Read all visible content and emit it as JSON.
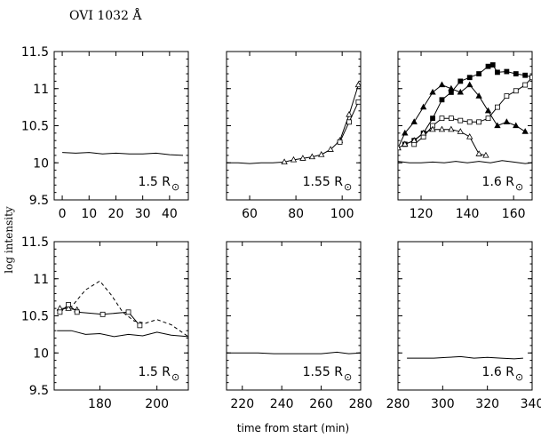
{
  "figure": {
    "title": "OVI 1032 Å",
    "ylabel": "log intensity",
    "xlabel": "time from start (min)"
  },
  "chart_data": [
    {
      "type": "line",
      "radius_label": "1.5 R",
      "radius_symbol": "⊙",
      "xlim": [
        -3,
        47
      ],
      "ylim": [
        9.5,
        11.5
      ],
      "xticks": [
        0,
        10,
        20,
        30,
        40
      ],
      "yticks": [
        9.5,
        10,
        10.5,
        11,
        11.5
      ],
      "series": [
        {
          "style": "solid",
          "marker": "none",
          "x": [
            0,
            5,
            10,
            15,
            20,
            25,
            30,
            35,
            40,
            45
          ],
          "y": [
            10.14,
            10.13,
            10.14,
            10.12,
            10.13,
            10.12,
            10.12,
            10.13,
            10.11,
            10.1
          ]
        }
      ]
    },
    {
      "type": "line",
      "radius_label": "1.55 R",
      "radius_symbol": "⊙",
      "xlim": [
        50,
        108
      ],
      "ylim": [
        9.5,
        11.5
      ],
      "xticks": [
        60,
        80,
        100
      ],
      "yticks": [
        9.5,
        10,
        10.5,
        11,
        11.5
      ],
      "series": [
        {
          "style": "solid",
          "marker": "none",
          "x": [
            50,
            55,
            60,
            65,
            70,
            75
          ],
          "y": [
            10.0,
            10.0,
            9.99,
            10.0,
            10.0,
            10.01
          ]
        },
        {
          "style": "solid",
          "marker": "triangle",
          "x": [
            75,
            79,
            83,
            87,
            91,
            95,
            99,
            103,
            107
          ],
          "y": [
            10.01,
            10.04,
            10.06,
            10.08,
            10.11,
            10.18,
            10.3,
            10.65,
            11.05
          ]
        },
        {
          "style": "solid",
          "marker": "square",
          "x": [
            99,
            103,
            107
          ],
          "y": [
            10.28,
            10.55,
            10.82
          ]
        }
      ]
    },
    {
      "type": "line",
      "radius_label": "1.6 R",
      "radius_symbol": "⊙",
      "xlim": [
        110,
        168
      ],
      "ylim": [
        9.5,
        11.5
      ],
      "xticks": [
        120,
        140,
        160
      ],
      "yticks": [
        9.5,
        10,
        10.5,
        11,
        11.5
      ],
      "series": [
        {
          "style": "solid",
          "marker": "none",
          "x": [
            110,
            115,
            120,
            125,
            130,
            135,
            140,
            145,
            150,
            155,
            160,
            165,
            168
          ],
          "y": [
            10.02,
            10.0,
            10.0,
            10.01,
            10.0,
            10.02,
            10.0,
            10.02,
            10.0,
            10.03,
            10.01,
            9.99,
            10.0
          ]
        },
        {
          "style": "solid",
          "marker": "filled-triangle",
          "x": [
            110,
            113,
            117,
            121,
            125,
            129,
            133,
            137,
            141,
            145,
            149,
            153,
            157,
            161,
            165
          ],
          "y": [
            10.2,
            10.4,
            10.55,
            10.75,
            10.95,
            11.05,
            11.0,
            10.95,
            11.05,
            10.9,
            10.7,
            10.5,
            10.55,
            10.5,
            10.42
          ]
        },
        {
          "style": "solid",
          "marker": "filled-square",
          "x": [
            113,
            117,
            121,
            125,
            129,
            133,
            137,
            141,
            145,
            149,
            151,
            153,
            157,
            161,
            165,
            168
          ],
          "y": [
            10.25,
            10.3,
            10.4,
            10.6,
            10.85,
            10.95,
            11.1,
            11.15,
            11.2,
            11.3,
            11.32,
            11.22,
            11.23,
            11.2,
            11.18,
            11.15
          ]
        },
        {
          "style": "solid",
          "marker": "square",
          "x": [
            117,
            121,
            125,
            129,
            133,
            137,
            141,
            145,
            149,
            153,
            157,
            161,
            165,
            168
          ],
          "y": [
            10.25,
            10.35,
            10.5,
            10.6,
            10.6,
            10.57,
            10.55,
            10.55,
            10.6,
            10.75,
            10.9,
            10.97,
            11.05,
            11.15
          ]
        },
        {
          "style": "solid",
          "marker": "triangle",
          "x": [
            110,
            113,
            117,
            121,
            125,
            129,
            133,
            137,
            141,
            145,
            148
          ],
          "y": [
            10.2,
            10.25,
            10.3,
            10.4,
            10.45,
            10.45,
            10.45,
            10.42,
            10.35,
            10.12,
            10.1
          ]
        }
      ]
    },
    {
      "type": "line",
      "radius_label": "1.5 R",
      "radius_symbol": "⊙",
      "xlim": [
        164,
        211
      ],
      "ylim": [
        9.5,
        11.5
      ],
      "xticks": [
        180,
        200
      ],
      "yticks": [
        9.5,
        10,
        10.5,
        11,
        11.5
      ],
      "series": [
        {
          "style": "solid",
          "marker": "none",
          "x": [
            165,
            170,
            175,
            180,
            185,
            190,
            195,
            200,
            205,
            211
          ],
          "y": [
            10.3,
            10.3,
            10.25,
            10.26,
            10.22,
            10.25,
            10.23,
            10.28,
            10.24,
            10.22
          ]
        },
        {
          "style": "dashed",
          "marker": "none",
          "x": [
            165,
            170,
            175,
            180,
            184,
            188,
            192,
            196,
            200,
            205,
            211
          ],
          "y": [
            10.58,
            10.62,
            10.85,
            10.97,
            10.78,
            10.55,
            10.43,
            10.4,
            10.45,
            10.38,
            10.22
          ]
        },
        {
          "style": "solid",
          "marker": "triangle",
          "x": [
            166,
            169,
            172
          ],
          "y": [
            10.6,
            10.6,
            10.58
          ]
        },
        {
          "style": "solid",
          "marker": "square",
          "x": [
            166,
            169,
            172,
            181,
            190,
            194
          ],
          "y": [
            10.55,
            10.65,
            10.55,
            10.52,
            10.55,
            10.37
          ]
        }
      ]
    },
    {
      "type": "line",
      "radius_label": "1.55 R",
      "radius_symbol": "⊙",
      "xlim": [
        212,
        280
      ],
      "ylim": [
        9.5,
        11.5
      ],
      "xticks": [
        220,
        240,
        260,
        280
      ],
      "yticks": [
        9.5,
        10,
        10.5,
        11,
        11.5
      ],
      "series": [
        {
          "style": "solid",
          "marker": "none",
          "x": [
            212,
            220,
            228,
            236,
            244,
            252,
            260,
            268,
            274,
            280
          ],
          "y": [
            10.0,
            10.0,
            10.0,
            9.99,
            9.99,
            9.99,
            9.99,
            10.01,
            9.99,
            10.0
          ]
        }
      ]
    },
    {
      "type": "line",
      "radius_label": "1.6 R",
      "radius_symbol": "⊙",
      "xlim": [
        280,
        340
      ],
      "ylim": [
        9.5,
        11.5
      ],
      "xticks": [
        280,
        300,
        320,
        340
      ],
      "yticks": [
        9.5,
        10,
        10.5,
        11,
        11.5
      ],
      "series": [
        {
          "style": "solid",
          "marker": "none",
          "x": [
            284,
            290,
            296,
            302,
            308,
            314,
            320,
            326,
            332,
            336
          ],
          "y": [
            9.93,
            9.93,
            9.93,
            9.94,
            9.95,
            9.93,
            9.94,
            9.93,
            9.92,
            9.93
          ]
        }
      ]
    }
  ]
}
